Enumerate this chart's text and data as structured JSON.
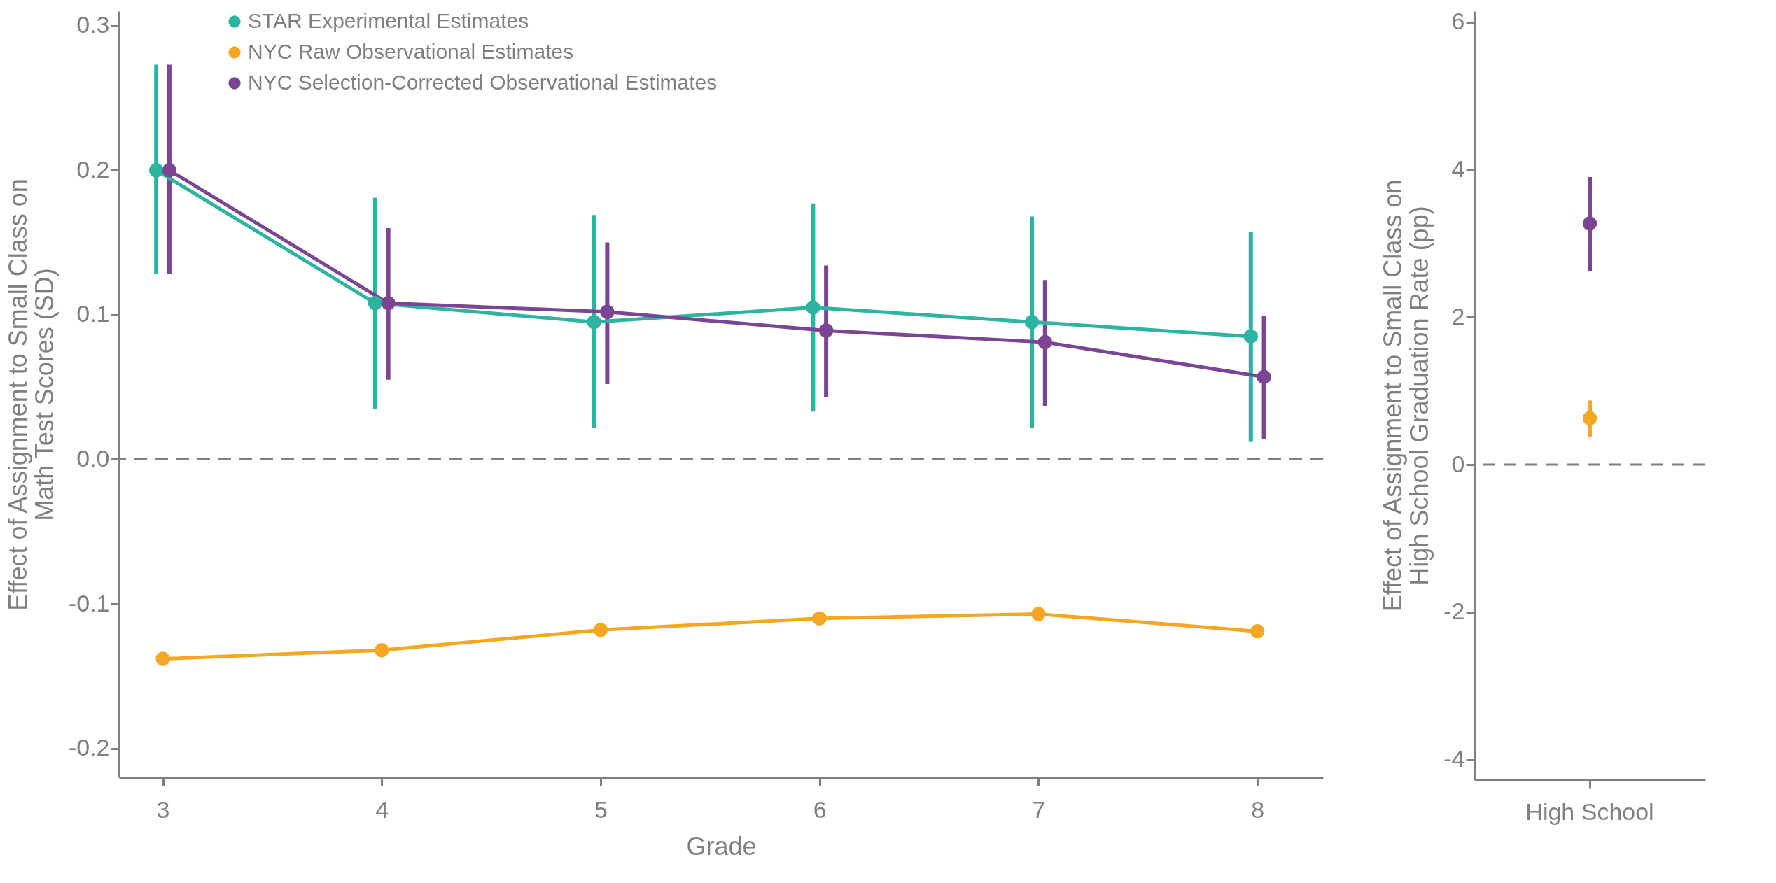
{
  "chart_data": [
    {
      "type": "line",
      "xlabel": "Grade",
      "ylabel": "Effect of Assignment to Small Class on\nMath Test Scores (SD)",
      "xlim": [
        2.8,
        8.3
      ],
      "xticks": [
        3,
        4,
        5,
        6,
        7,
        8
      ],
      "ylim": [
        -0.22,
        0.31
      ],
      "yticks": [
        -0.2,
        -0.1,
        {
          "value": 0,
          "label": "0.0"
        },
        0.1,
        0.2,
        0.3
      ],
      "marker": "circle",
      "legend": "top left",
      "grid": false,
      "ref_lines": [
        {
          "axis": "y",
          "value": 0,
          "color": "#808080",
          "line_style": "dashed"
        }
      ],
      "series": [
        {
          "name": "STAR Experimental Estimates",
          "color": "#2bb5a0",
          "x": [
            2.97,
            3.97,
            4.97,
            5.97,
            6.97,
            7.97
          ],
          "values": [
            0.2,
            0.108,
            0.095,
            0.105,
            0.095,
            0.085
          ],
          "errors": [
            [
              0.128,
              0.273
            ],
            [
              0.035,
              0.181
            ],
            [
              0.022,
              0.169
            ],
            [
              0.033,
              0.177
            ],
            [
              0.022,
              0.168
            ],
            [
              0.012,
              0.157
            ]
          ]
        },
        {
          "name": "NYC Raw Observational Estimates",
          "color": "#f5a623",
          "x": [
            3,
            4,
            5,
            6,
            7,
            8
          ],
          "values": [
            -0.138,
            -0.132,
            -0.118,
            -0.11,
            -0.107,
            -0.119
          ]
        },
        {
          "name": "NYC Selection-Corrected Observational Estimates",
          "color": "#7b4593",
          "x": [
            3.03,
            4.03,
            5.03,
            6.03,
            7.03,
            8.03
          ],
          "values": [
            0.2,
            0.108,
            0.102,
            0.089,
            0.081,
            0.057
          ],
          "errors": [
            [
              0.128,
              0.273
            ],
            [
              0.055,
              0.16
            ],
            [
              0.052,
              0.15
            ],
            [
              0.043,
              0.134
            ],
            [
              0.037,
              0.124
            ],
            [
              0.014,
              0.099
            ]
          ]
        }
      ]
    },
    {
      "type": "scatter",
      "ylabel": "Effect of Assignment to Small Class on\nHigh School Graduation Rate (pp)",
      "categories": [
        "High School"
      ],
      "ylim": [
        -4.27,
        6.15
      ],
      "yticks": [
        -4,
        -2,
        0,
        2,
        4,
        6
      ],
      "marker": "circle",
      "grid": false,
      "ref_lines": [
        {
          "axis": "y",
          "value": 0,
          "color": "#808080",
          "line_style": "dashed"
        }
      ],
      "series": [
        {
          "color": "#f5a623",
          "values": [
            0.63
          ],
          "errors": [
            [
              0.38,
              0.87
            ]
          ]
        },
        {
          "color": "#7b4593",
          "values": [
            3.27
          ],
          "errors": [
            [
              2.63,
              3.9
            ]
          ]
        }
      ]
    }
  ]
}
